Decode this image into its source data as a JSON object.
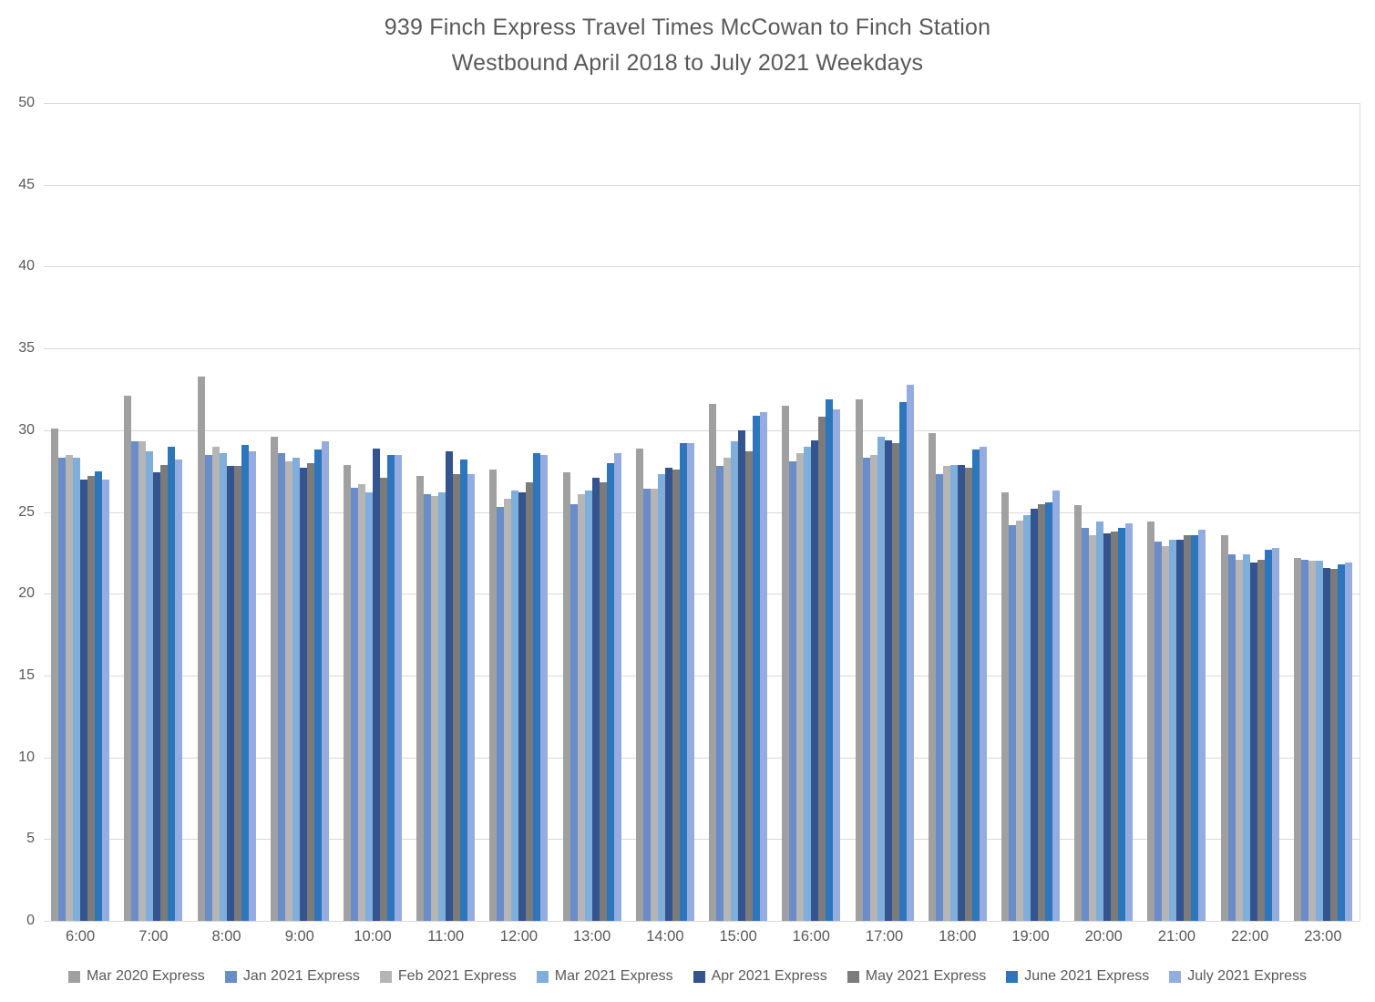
{
  "title": {
    "line1": "939 Finch Express Travel Times McCowan to Finch Station",
    "line2": "Westbound April 2018 to July 2021 Weekdays"
  },
  "style": {
    "title_color": "#595959",
    "axis_text_color": "#595959",
    "grid_color": "#D9D9D9"
  },
  "chart_data": {
    "type": "bar",
    "title": "939 Finch Express Travel Times McCowan to Finch Station Westbound April 2018 to July 2021 Weekdays",
    "xlabel": "",
    "ylabel": "",
    "ylim": [
      0,
      50
    ],
    "ytick_step": 5,
    "grid": "horizontal",
    "legend_position": "bottom",
    "categories": [
      "6:00",
      "7:00",
      "8:00",
      "9:00",
      "10:00",
      "11:00",
      "12:00",
      "13:00",
      "14:00",
      "15:00",
      "16:00",
      "17:00",
      "18:00",
      "19:00",
      "20:00",
      "21:00",
      "22:00",
      "23:00"
    ],
    "series": [
      {
        "name": "Mar 2020 Express",
        "color": "#A0A0A0",
        "values": [
          30.1,
          32.1,
          33.3,
          29.6,
          27.9,
          27.2,
          27.6,
          27.4,
          28.9,
          31.6,
          31.5,
          31.9,
          29.8,
          26.2,
          25.4,
          24.4,
          23.6,
          22.2
        ]
      },
      {
        "name": "Jan 2021 Express",
        "color": "#6A8CC8",
        "values": [
          28.3,
          29.3,
          28.5,
          28.6,
          26.5,
          26.1,
          25.3,
          25.5,
          26.4,
          27.8,
          28.1,
          28.3,
          27.3,
          24.2,
          24.0,
          23.2,
          22.4,
          22.1
        ]
      },
      {
        "name": "Feb 2021 Express",
        "color": "#B5B5B5",
        "values": [
          28.5,
          29.3,
          29.0,
          28.1,
          26.7,
          26.0,
          25.8,
          26.1,
          26.4,
          28.3,
          28.6,
          28.5,
          27.8,
          24.5,
          23.6,
          22.9,
          22.1,
          22.0
        ]
      },
      {
        "name": "Mar 2021 Express",
        "color": "#7FAEDB",
        "values": [
          28.3,
          28.7,
          28.6,
          28.3,
          26.2,
          26.2,
          26.3,
          26.3,
          27.3,
          29.3,
          29.0,
          29.6,
          27.9,
          24.8,
          24.4,
          23.3,
          22.4,
          22.0
        ]
      },
      {
        "name": "Apr 2021 Express",
        "color": "#33548E",
        "values": [
          27.0,
          27.4,
          27.8,
          27.7,
          28.9,
          28.7,
          26.2,
          27.1,
          27.7,
          30.0,
          29.4,
          29.4,
          27.9,
          25.2,
          23.7,
          23.3,
          21.9,
          21.6
        ]
      },
      {
        "name": "May 2021 Express",
        "color": "#7B7B7B",
        "values": [
          27.2,
          27.9,
          27.8,
          28.0,
          27.1,
          27.3,
          26.8,
          26.8,
          27.6,
          28.7,
          30.8,
          29.2,
          27.7,
          25.5,
          23.8,
          23.6,
          22.1,
          21.5
        ]
      },
      {
        "name": "June 2021 Express",
        "color": "#2E76BC",
        "values": [
          27.5,
          29.0,
          29.1,
          28.8,
          28.5,
          28.2,
          28.6,
          28.0,
          29.2,
          30.9,
          31.9,
          31.7,
          28.8,
          25.6,
          24.0,
          23.6,
          22.7,
          21.8
        ]
      },
      {
        "name": "July 2021 Express",
        "color": "#94ACE0",
        "values": [
          27.0,
          28.2,
          28.7,
          29.3,
          28.5,
          27.3,
          28.5,
          28.6,
          29.2,
          31.1,
          31.3,
          32.8,
          29.0,
          26.3,
          24.3,
          23.9,
          22.8,
          21.9
        ]
      }
    ]
  }
}
